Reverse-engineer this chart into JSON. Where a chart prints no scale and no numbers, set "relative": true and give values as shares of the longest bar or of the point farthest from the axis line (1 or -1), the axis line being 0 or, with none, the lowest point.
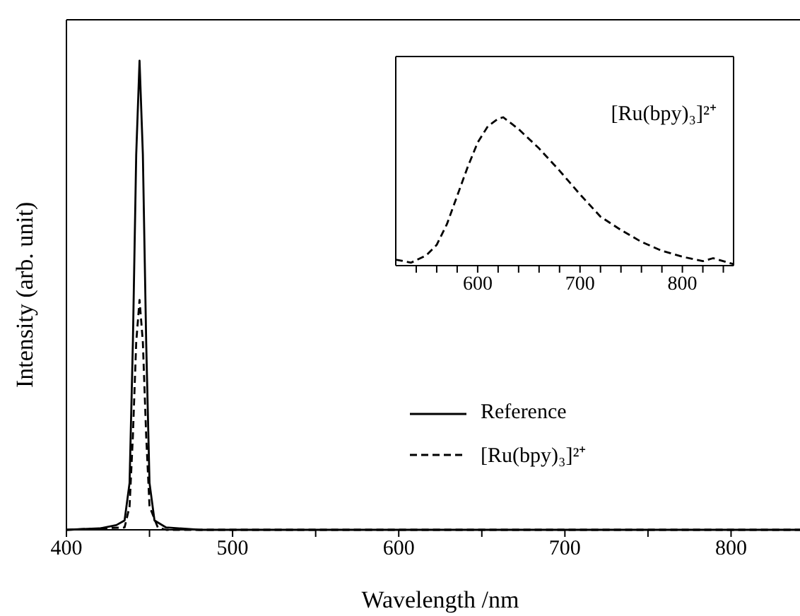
{
  "chart_data": [
    {
      "type": "line",
      "relative": true,
      "xlabel": "Wavelength /nm",
      "ylabel": "Intensity (arb. unit)",
      "xlim": [
        400,
        850
      ],
      "xticks": [
        400,
        {
          "value": 450,
          "label": null
        },
        500,
        {
          "value": 550,
          "label": null
        },
        600,
        {
          "value": 650,
          "label": null
        },
        700,
        {
          "value": 750,
          "label": null
        },
        800
      ],
      "legend": "right",
      "series": [
        {
          "name": "Reference",
          "color": "#000000",
          "line_style": "solid",
          "x": [
            400,
            420,
            430,
            435,
            438,
            440,
            442,
            444,
            446,
            448,
            450,
            453,
            460,
            480,
            850
          ],
          "values": [
            0,
            0.003,
            0.01,
            0.02,
            0.1,
            0.4,
            0.8,
            1,
            0.8,
            0.4,
            0.1,
            0.02,
            0.005,
            0,
            0
          ]
        },
        {
          "name": "[Ru(bpy)₃]²⁺",
          "color": "#000000",
          "line_style": "dashed",
          "x": [
            400,
            435,
            438,
            440,
            442,
            444,
            446,
            448,
            450,
            455,
            460,
            850
          ],
          "values": [
            0,
            0.005,
            0.05,
            0.2,
            0.4,
            0.49,
            0.4,
            0.2,
            0.05,
            0.005,
            0,
            0
          ]
        }
      ]
    },
    {
      "type": "line",
      "relative": true,
      "xlim": [
        520,
        850
      ],
      "xticks": [
        {
          "value": 540,
          "label": null
        },
        {
          "value": 560,
          "label": null
        },
        {
          "value": 580,
          "label": null
        },
        600,
        {
          "value": 620,
          "label": null
        },
        {
          "value": 640,
          "label": null
        },
        {
          "value": 660,
          "label": null
        },
        {
          "value": 680,
          "label": null
        },
        700,
        {
          "value": 720,
          "label": null
        },
        {
          "value": 740,
          "label": null
        },
        {
          "value": 760,
          "label": null
        },
        {
          "value": 780,
          "label": null
        },
        800,
        {
          "value": 820,
          "label": null
        },
        {
          "value": 840,
          "label": null
        }
      ],
      "series": [
        {
          "name": "[Ru(bpy)₃]²⁺",
          "color": "#000000",
          "line_style": "dashed",
          "x": [
            520,
            535,
            550,
            560,
            570,
            580,
            590,
            600,
            610,
            620,
            625,
            640,
            660,
            680,
            700,
            720,
            740,
            760,
            780,
            800,
            820,
            830,
            850
          ],
          "values": [
            0.04,
            0.02,
            0.07,
            0.14,
            0.28,
            0.47,
            0.66,
            0.83,
            0.94,
            0.99,
            1,
            0.92,
            0.79,
            0.64,
            0.48,
            0.33,
            0.24,
            0.16,
            0.1,
            0.06,
            0.03,
            0.05,
            0.01
          ]
        }
      ]
    }
  ]
}
